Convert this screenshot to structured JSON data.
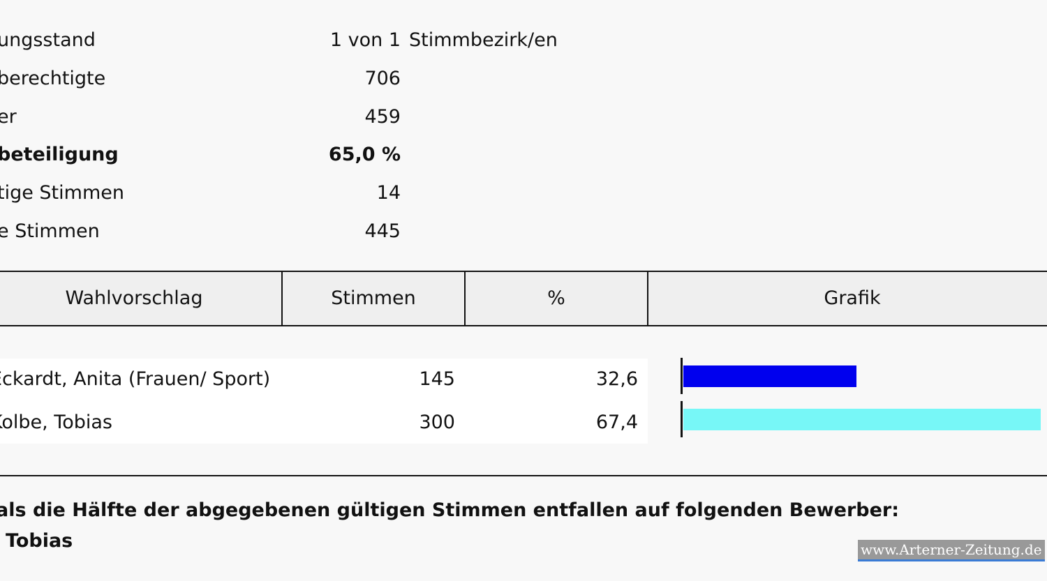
{
  "stats": [
    {
      "label": "ungsstand",
      "value": "1 von 1",
      "unit": "Stimmbezirk/en"
    },
    {
      "label": "berechtigte",
      "value": "706"
    },
    {
      "label": "er",
      "value": "459"
    },
    {
      "label": "beteiligung",
      "value": "65,0  %"
    },
    {
      "label": "tige Stimmen",
      "value": "14"
    },
    {
      "label": "e Stimmen",
      "value": "445"
    }
  ],
  "table": {
    "headers": [
      "Wahlvorschlag",
      "Stimmen",
      "%",
      "Grafik"
    ],
    "rows": [
      {
        "name": "Eckardt, Anita (Frauen/ Sport)",
        "votes": "145",
        "percent": {
          "value": 32.6,
          "label": "32,6"
        },
        "color": "#0000ee"
      },
      {
        "name": "Kolbe, Tobias",
        "votes": "300",
        "percent": {
          "value": 67.4,
          "label": "67,4"
        },
        "color": "#77f7f7"
      }
    ]
  },
  "footer": {
    "line1": "als die Hälfte der abgegebenen gültigen Stimmen entfallen auf folgenden Bewerber:",
    "line2": "Tobias"
  },
  "watermark": "www.Arterner-Zeitung.de"
}
